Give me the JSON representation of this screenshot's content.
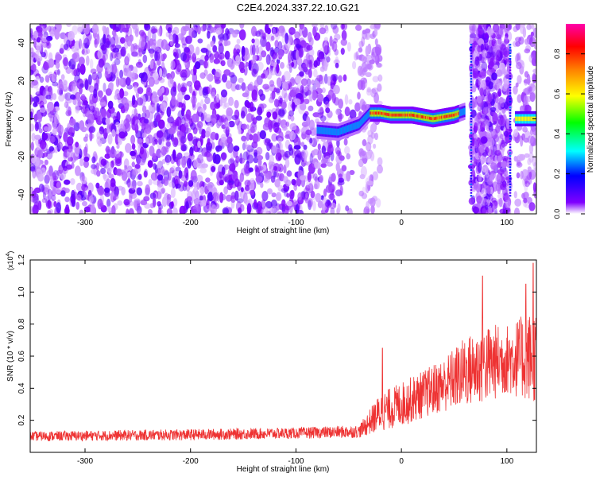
{
  "title": "C2E4.2024.337.22.10.G21",
  "chart_data": [
    {
      "type": "heatmap",
      "xlabel": "Height of straight line (km)",
      "ylabel": "Frequency (Hz)",
      "xlim": [
        -352,
        128
      ],
      "ylim": [
        -50,
        50
      ],
      "xticks": [
        -300,
        -200,
        -100,
        0,
        100
      ],
      "yticks": [
        -40,
        -20,
        0,
        20,
        40
      ],
      "colorbar": {
        "label": "Normalized spectral amplitude",
        "range": [
          0,
          0.95
        ],
        "ticks": [
          0.0,
          0.2,
          0.4,
          0.6,
          0.8
        ],
        "colormap": [
          "#ffffff",
          "#7f00ff",
          "#0000ff",
          "#00ffff",
          "#00ff00",
          "#ffff00",
          "#ff7f00",
          "#ff0000",
          "#ff00aa"
        ]
      },
      "features": {
        "noise_region_x": [
          -352,
          -40
        ],
        "tracked_signal": {
          "x": [
            -80,
            -60,
            -40,
            -30,
            -20,
            -10,
            0,
            10,
            20,
            30,
            40,
            50,
            60
          ],
          "freq": [
            -6,
            -7,
            -3,
            3,
            3,
            2,
            2,
            2,
            1,
            0,
            1,
            2,
            4
          ],
          "peak_amplitude": 0.85
        },
        "noise_bands_x": [
          [
            66,
            103
          ]
        ],
        "signal_after_x": [
          108,
          128
        ],
        "gap_x": [
          -40,
          66
        ]
      }
    },
    {
      "type": "line",
      "xlabel": "Height of straight line (km)",
      "ylabel": "SNR (10 * v/v)",
      "yscale_label": "(x10",
      "yscale_exp": "4",
      "yscale_close": ")",
      "xlim": [
        -352,
        128
      ],
      "ylim": [
        0,
        1.2
      ],
      "xticks": [
        -300,
        -200,
        -100,
        0,
        100
      ],
      "yticks": [
        0.2,
        0.4,
        0.6,
        0.8,
        1.0,
        1.2
      ],
      "color": "#ee3333",
      "trend": {
        "x": [
          -352,
          -200,
          -100,
          -40,
          -20,
          0,
          20,
          40,
          60,
          80,
          100,
          128
        ],
        "mean": [
          0.1,
          0.11,
          0.12,
          0.13,
          0.25,
          0.3,
          0.36,
          0.42,
          0.5,
          0.55,
          0.58,
          0.6
        ],
        "noise_amp": [
          0.03,
          0.035,
          0.035,
          0.04,
          0.12,
          0.14,
          0.15,
          0.17,
          0.22,
          0.25,
          0.22,
          0.3
        ]
      },
      "peaks": [
        {
          "x": 77,
          "y": 1.1
        },
        {
          "x": 125,
          "y": 1.18
        },
        {
          "x": 118,
          "y": 1.05
        },
        {
          "x": -18,
          "y": 0.65
        }
      ]
    }
  ]
}
